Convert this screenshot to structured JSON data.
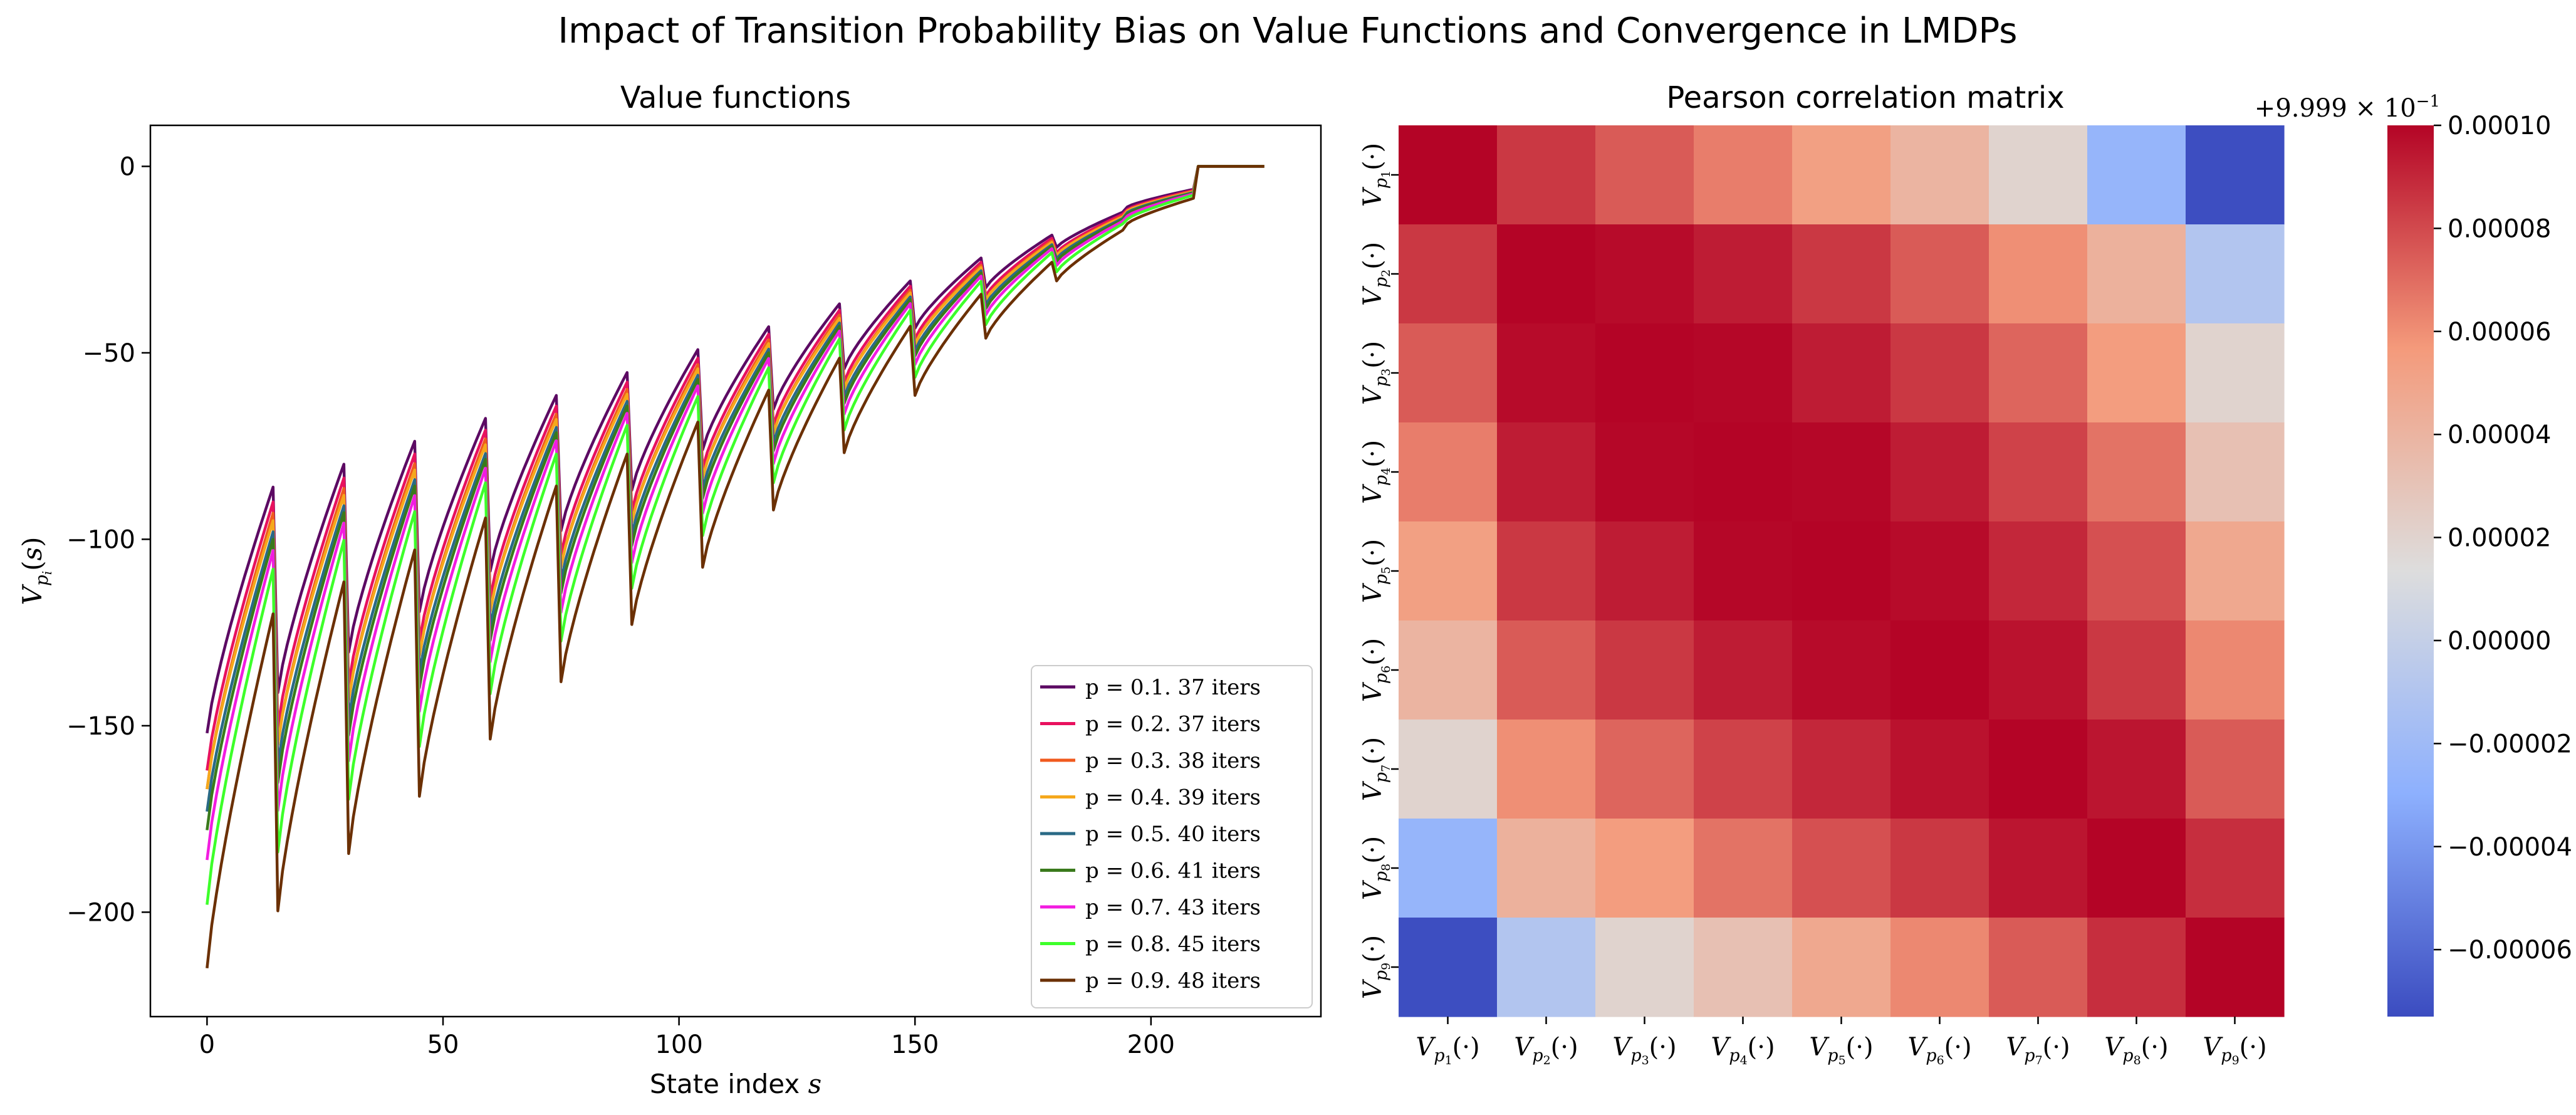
{
  "suptitle": "Impact of Transition Probability Bias on Value Functions and Convergence in LMDPs",
  "chart_data": [
    {
      "type": "line",
      "title": "Value functions",
      "xlabel": "State index s",
      "xlabel_plain": "State index ",
      "xlabel_italic": "s",
      "ylabel": "V_{p_i}(s)",
      "xlim": [
        -12,
        236
      ],
      "ylim": [
        -228,
        11
      ],
      "xticks": [
        0,
        50,
        100,
        150,
        200
      ],
      "yticks": [
        0,
        -50,
        -100,
        -150,
        -200
      ],
      "n_states": 225,
      "segment_length": 15,
      "legend_position": "lower right",
      "series": [
        {
          "name": "p = 0.1.  37 iters",
          "p": 0.1,
          "iters": 37,
          "color": "#5c0a63",
          "start_value": -152,
          "first_segment_peak": -86
        },
        {
          "name": "p = 0.2.  37 iters",
          "p": 0.2,
          "iters": 37,
          "color": "#e8115e",
          "start_value": -162,
          "first_segment_peak": -90
        },
        {
          "name": "p = 0.3.  38 iters",
          "p": 0.3,
          "iters": 38,
          "color": "#f05a1e",
          "start_value": -167,
          "first_segment_peak": -93
        },
        {
          "name": "p = 0.4.  39 iters",
          "p": 0.4,
          "iters": 39,
          "color": "#f5a81c",
          "start_value": -167,
          "first_segment_peak": -95
        },
        {
          "name": "p = 0.5.  40 iters",
          "p": 0.5,
          "iters": 40,
          "color": "#2a6a86",
          "start_value": -173,
          "first_segment_peak": -98
        },
        {
          "name": "p = 0.6.  41 iters",
          "p": 0.6,
          "iters": 41,
          "color": "#3a7a1c",
          "start_value": -178,
          "first_segment_peak": -100
        },
        {
          "name": "p = 0.7.  43 iters",
          "p": 0.7,
          "iters": 43,
          "color": "#f21ce0",
          "start_value": -186,
          "first_segment_peak": -103
        },
        {
          "name": "p = 0.8.  45 iters",
          "p": 0.8,
          "iters": 45,
          "color": "#3dff2a",
          "start_value": -198,
          "first_segment_peak": -108
        },
        {
          "name": "p = 0.9.  48 iters",
          "p": 0.9,
          "iters": 48,
          "color": "#6b3004",
          "start_value": -215,
          "first_segment_peak": -120
        }
      ]
    },
    {
      "type": "heatmap",
      "title": "Pearson correlation matrix",
      "row_labels": [
        "V_{p_1}(·)",
        "V_{p_2}(·)",
        "V_{p_3}(·)",
        "V_{p_4}(·)",
        "V_{p_5}(·)",
        "V_{p_6}(·)",
        "V_{p_7}(·)",
        "V_{p_8}(·)",
        "V_{p_9}(·)"
      ],
      "col_labels": [
        "V_{p_1}(·)",
        "V_{p_2}(·)",
        "V_{p_3}(·)",
        "V_{p_4}(·)",
        "V_{p_5}(·)",
        "V_{p_6}(·)",
        "V_{p_7}(·)",
        "V_{p_8}(·)",
        "V_{p_9}(·)"
      ],
      "offset_label": "+9.999 × 10^{-1}",
      "offset_label_main": "+9.999 × 10",
      "offset_label_exp": "−1",
      "colormap": "coolwarm",
      "vmin": -7.3e-05,
      "vmax": 0.0001,
      "colorbar_ticks": [
        0.0001,
        8e-05,
        6e-05,
        4e-05,
        2e-05,
        0.0,
        -2e-05,
        -4e-05,
        -6e-05
      ],
      "colorbar_tick_labels": [
        "0.00010",
        "0.00008",
        "0.00006",
        "0.00004",
        "0.00002",
        "0.00000",
        "−0.00002",
        "−0.00004",
        "−0.00006"
      ],
      "values": [
        [
          0.0001,
          8.5e-05,
          7.5e-05,
          6.5e-05,
          5.3e-05,
          4e-05,
          2e-05,
          -2.5e-05,
          -7.2e-05
        ],
        [
          8.5e-05,
          0.0001,
          9.8e-05,
          9.3e-05,
          8.5e-05,
          7.5e-05,
          6e-05,
          4.2e-05,
          -1e-05
        ],
        [
          7.5e-05,
          9.8e-05,
          0.0001,
          9.9e-05,
          9.3e-05,
          8.5e-05,
          7.2e-05,
          5.5e-05,
          2e-05
        ],
        [
          6.5e-05,
          9.3e-05,
          9.9e-05,
          0.0001,
          9.9e-05,
          9.3e-05,
          8.2e-05,
          6.8e-05,
          3.2e-05
        ],
        [
          5.3e-05,
          8.5e-05,
          9.3e-05,
          9.9e-05,
          0.0001,
          9.8e-05,
          9e-05,
          7.8e-05,
          4.8e-05
        ],
        [
          4e-05,
          7.5e-05,
          8.5e-05,
          9.3e-05,
          9.8e-05,
          0.0001,
          9.6e-05,
          8.5e-05,
          6.2e-05
        ],
        [
          2e-05,
          6e-05,
          7.2e-05,
          8.2e-05,
          9e-05,
          9.6e-05,
          0.0001,
          9.5e-05,
          7.5e-05
        ],
        [
          -2.5e-05,
          4.2e-05,
          5.5e-05,
          6.8e-05,
          7.8e-05,
          8.5e-05,
          9.5e-05,
          0.0001,
          8.8e-05
        ],
        [
          -7.2e-05,
          -1e-05,
          2e-05,
          3.2e-05,
          4.8e-05,
          6.2e-05,
          7.5e-05,
          8.8e-05,
          0.0001
        ]
      ]
    }
  ]
}
